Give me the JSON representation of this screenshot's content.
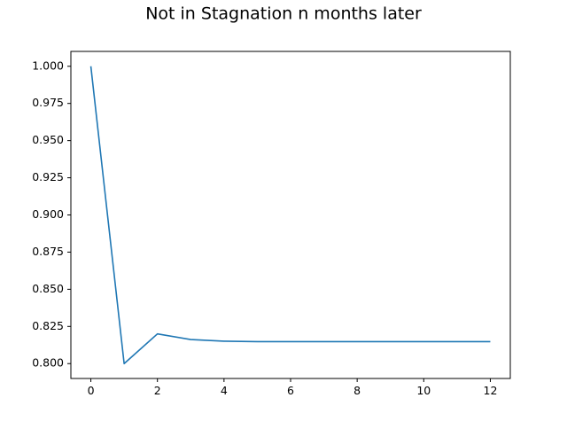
{
  "chart_data": {
    "type": "line",
    "title": "Not in Stagnation n months later",
    "xlabel": "",
    "ylabel": "",
    "x": [
      0,
      1,
      2,
      3,
      4,
      5,
      6,
      7,
      8,
      9,
      10,
      11,
      12
    ],
    "series": [
      {
        "values": [
          1.0,
          0.8,
          0.82,
          0.8162,
          0.8151,
          0.8148,
          0.8148,
          0.8148,
          0.8148,
          0.8148,
          0.8148,
          0.8148,
          0.8148
        ],
        "color": "#1f77b4"
      }
    ],
    "xlim": [
      -0.6,
      12.6
    ],
    "ylim": [
      0.79,
      1.01
    ],
    "xticks": [
      0,
      2,
      4,
      6,
      8,
      10,
      12
    ],
    "xtick_labels": [
      "0",
      "2",
      "4",
      "6",
      "8",
      "10",
      "12"
    ],
    "yticks": [
      0.8,
      0.825,
      0.85,
      0.875,
      0.9,
      0.925,
      0.95,
      0.975,
      1.0
    ],
    "ytick_labels": [
      "0.800",
      "0.825",
      "0.850",
      "0.875",
      "0.900",
      "0.925",
      "0.950",
      "0.975",
      "1.000"
    ],
    "grid": false,
    "legend": "none"
  }
}
